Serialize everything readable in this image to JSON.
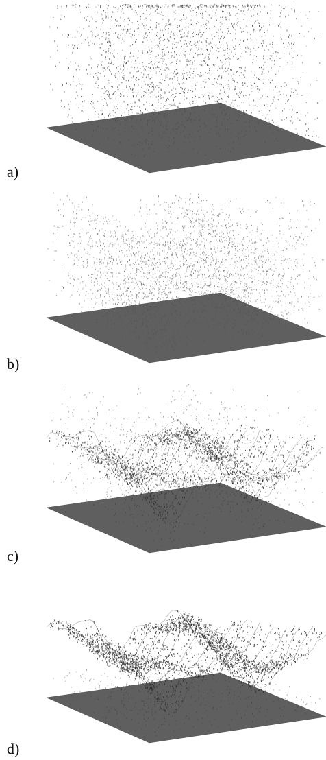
{
  "panels": [
    {
      "id": "a",
      "label": "a)",
      "style": "uniform",
      "density": 3800,
      "color": "#4a4a4a"
    },
    {
      "id": "b",
      "label": "b)",
      "style": "spread",
      "density": 3200,
      "color": "#505050"
    },
    {
      "id": "c",
      "label": "c)",
      "style": "converging",
      "density": 2600,
      "color": "#2e2e2e"
    },
    {
      "id": "d",
      "label": "d)",
      "style": "converged",
      "density": 2600,
      "color": "#2e2e2e"
    }
  ],
  "colors": {
    "plane": "#5f5f5f",
    "plane_edge": "#505050",
    "background": "#ffffff"
  }
}
